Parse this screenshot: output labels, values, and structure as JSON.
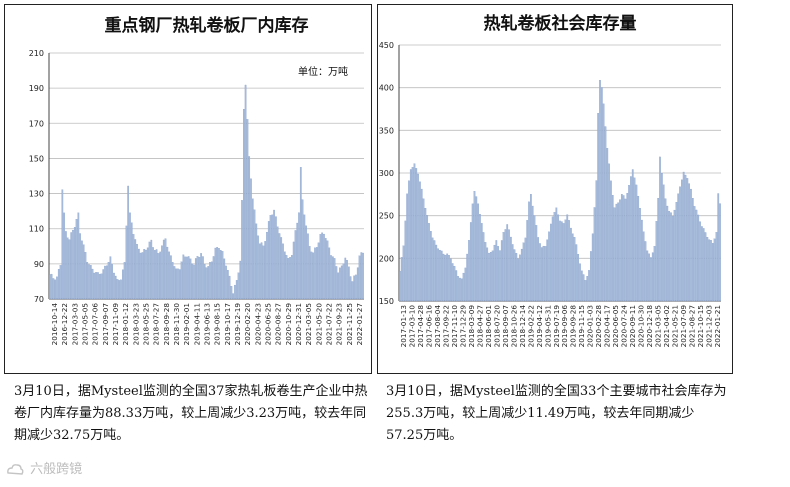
{
  "colors": {
    "bar": "#a7bbdb",
    "bar_stroke": "#7f99c6",
    "grid": "#bdbdbd",
    "axis": "#444444"
  },
  "chart_data": [
    {
      "type": "bar",
      "title": "重点钢厂热轧卷板厂内库存",
      "unit_label": "单位：万吨",
      "ylim": [
        70,
        210
      ],
      "yticks": [
        70,
        90,
        110,
        130,
        150,
        170,
        190,
        210
      ],
      "xtick_labels": [
        "2016-10-14",
        "2016-12-22",
        "2017-03-03",
        "2017-05-05",
        "2017-07-06",
        "2017-09-07",
        "2017-11-09",
        "2018-01-12",
        "2018-03-23",
        "2018-05-25",
        "2018-07-27",
        "2018-09-28",
        "2018-11-30",
        "2019-02-01",
        "2019-04-11",
        "2019-06-13",
        "2019-08-15",
        "2019-10-17",
        "2019-12-19",
        "2020-02-20",
        "2020-04-23",
        "2020-06-25",
        "2020-08-27",
        "2020-10-29",
        "2020-12-31",
        "2021-03-05",
        "2021-05-20",
        "2021-07-22",
        "2021-09-23",
        "2021-11-25",
        "2022-01-27"
      ],
      "keypoints": [
        [
          0,
          84
        ],
        [
          2,
          82
        ],
        [
          4,
          82
        ],
        [
          6,
          90
        ],
        [
          7,
          133
        ],
        [
          8,
          118
        ],
        [
          9,
          108
        ],
        [
          11,
          104
        ],
        [
          14,
          112
        ],
        [
          16,
          118
        ],
        [
          17,
          108
        ],
        [
          19,
          100
        ],
        [
          21,
          92
        ],
        [
          23,
          88
        ],
        [
          25,
          86
        ],
        [
          27,
          84
        ],
        [
          30,
          86
        ],
        [
          32,
          90
        ],
        [
          34,
          93
        ],
        [
          36,
          86
        ],
        [
          38,
          80
        ],
        [
          40,
          82
        ],
        [
          42,
          90
        ],
        [
          44,
          135
        ],
        [
          45,
          118
        ],
        [
          47,
          108
        ],
        [
          49,
          100
        ],
        [
          52,
          96
        ],
        [
          55,
          100
        ],
        [
          57,
          103
        ],
        [
          59,
          98
        ],
        [
          61,
          96
        ],
        [
          63,
          100
        ],
        [
          65,
          105
        ],
        [
          67,
          96
        ],
        [
          69,
          92
        ],
        [
          71,
          86
        ],
        [
          73,
          88
        ],
        [
          75,
          94
        ],
        [
          77,
          95
        ],
        [
          79,
          92
        ],
        [
          81,
          90
        ],
        [
          83,
          94
        ],
        [
          85,
          96
        ],
        [
          87,
          90
        ],
        [
          89,
          88
        ],
        [
          91,
          92
        ],
        [
          93,
          98
        ],
        [
          95,
          100
        ],
        [
          97,
          96
        ],
        [
          99,
          90
        ],
        [
          101,
          82
        ],
        [
          103,
          74
        ],
        [
          105,
          80
        ],
        [
          107,
          92
        ],
        [
          108,
          125
        ],
        [
          109,
          178
        ],
        [
          110,
          193
        ],
        [
          111,
          172
        ],
        [
          112,
          150
        ],
        [
          114,
          128
        ],
        [
          116,
          112
        ],
        [
          118,
          102
        ],
        [
          120,
          100
        ],
        [
          122,
          108
        ],
        [
          124,
          118
        ],
        [
          126,
          120
        ],
        [
          128,
          112
        ],
        [
          130,
          104
        ],
        [
          132,
          98
        ],
        [
          134,
          92
        ],
        [
          136,
          96
        ],
        [
          138,
          108
        ],
        [
          140,
          120
        ],
        [
          141,
          144
        ],
        [
          142,
          126
        ],
        [
          144,
          112
        ],
        [
          146,
          100
        ],
        [
          148,
          96
        ],
        [
          150,
          100
        ],
        [
          152,
          106
        ],
        [
          154,
          108
        ],
        [
          156,
          102
        ],
        [
          158,
          96
        ],
        [
          160,
          92
        ],
        [
          162,
          86
        ],
        [
          164,
          88
        ],
        [
          166,
          94
        ],
        [
          168,
          88
        ],
        [
          170,
          80
        ],
        [
          172,
          84
        ],
        [
          174,
          94
        ],
        [
          176,
          97
        ]
      ],
      "bar_count": 177,
      "caption": "3月10日，据Mysteel监测的全国37家热轧板卷生产企业中热卷厂内库存量为88.33万吨，较上周减少3.23万吨，较去年同期减少32.75万吨。"
    },
    {
      "type": "bar",
      "title": "热轧卷板社会库存量",
      "ylim": [
        150,
        450
      ],
      "yticks": [
        150,
        200,
        250,
        300,
        350,
        400,
        450
      ],
      "xtick_labels": [
        "2017-01-13",
        "2017-03-10",
        "2017-04-28",
        "2017-06-16",
        "2017-08-04",
        "2017-09-22",
        "2017-11-10",
        "2017-12-29",
        "2018-03-09",
        "2018-04-27",
        "2018-06-01",
        "2018-07-20",
        "2018-09-07",
        "2018-10-26",
        "2018-12-14",
        "2019-02-22",
        "2019-04-12",
        "2019-05-31",
        "2019-07-19",
        "2019-09-06",
        "2019-09-28",
        "2019-11-15",
        "2020-01-03",
        "2020-02-28",
        "2020-04-17",
        "2020-06-05",
        "2020-07-24",
        "2020-09-11",
        "2020-10-30",
        "2020-12-18",
        "2021-03-05",
        "2021-04-02",
        "2021-05-21",
        "2021-07-09",
        "2021-08-27",
        "2021-10-15",
        "2021-12-03",
        "2022-01-21"
      ],
      "keypoints": [
        [
          0,
          185
        ],
        [
          2,
          215
        ],
        [
          4,
          275
        ],
        [
          6,
          305
        ],
        [
          8,
          310
        ],
        [
          10,
          300
        ],
        [
          12,
          280
        ],
        [
          14,
          260
        ],
        [
          16,
          240
        ],
        [
          18,
          225
        ],
        [
          20,
          215
        ],
        [
          22,
          210
        ],
        [
          24,
          205
        ],
        [
          26,
          205
        ],
        [
          28,
          200
        ],
        [
          30,
          190
        ],
        [
          32,
          180
        ],
        [
          34,
          175
        ],
        [
          36,
          190
        ],
        [
          38,
          220
        ],
        [
          40,
          265
        ],
        [
          41,
          278
        ],
        [
          43,
          265
        ],
        [
          45,
          240
        ],
        [
          47,
          220
        ],
        [
          49,
          205
        ],
        [
          51,
          210
        ],
        [
          53,
          220
        ],
        [
          55,
          210
        ],
        [
          57,
          230
        ],
        [
          59,
          240
        ],
        [
          61,
          225
        ],
        [
          63,
          210
        ],
        [
          65,
          200
        ],
        [
          67,
          210
        ],
        [
          69,
          225
        ],
        [
          71,
          265
        ],
        [
          72,
          275
        ],
        [
          74,
          250
        ],
        [
          76,
          225
        ],
        [
          78,
          212
        ],
        [
          80,
          215
        ],
        [
          82,
          230
        ],
        [
          84,
          250
        ],
        [
          86,
          258
        ],
        [
          88,
          245
        ],
        [
          90,
          240
        ],
        [
          92,
          252
        ],
        [
          94,
          235
        ],
        [
          96,
          225
        ],
        [
          98,
          205
        ],
        [
          100,
          185
        ],
        [
          102,
          175
        ],
        [
          104,
          185
        ],
        [
          106,
          230
        ],
        [
          108,
          290
        ],
        [
          109,
          370
        ],
        [
          110,
          410
        ],
        [
          111,
          400
        ],
        [
          112,
          380
        ],
        [
          114,
          330
        ],
        [
          116,
          290
        ],
        [
          118,
          260
        ],
        [
          120,
          265
        ],
        [
          122,
          275
        ],
        [
          124,
          270
        ],
        [
          126,
          285
        ],
        [
          128,
          305
        ],
        [
          130,
          285
        ],
        [
          132,
          260
        ],
        [
          134,
          230
        ],
        [
          136,
          210
        ],
        [
          138,
          200
        ],
        [
          140,
          215
        ],
        [
          142,
          270
        ],
        [
          143,
          320
        ],
        [
          144,
          300
        ],
        [
          146,
          270
        ],
        [
          148,
          255
        ],
        [
          150,
          250
        ],
        [
          152,
          265
        ],
        [
          154,
          285
        ],
        [
          156,
          300
        ],
        [
          158,
          295
        ],
        [
          160,
          280
        ],
        [
          162,
          262
        ],
        [
          164,
          250
        ],
        [
          166,
          238
        ],
        [
          168,
          230
        ],
        [
          170,
          222
        ],
        [
          172,
          218
        ],
        [
          174,
          230
        ],
        [
          175,
          275
        ],
        [
          176,
          265
        ]
      ],
      "bar_count": 177,
      "caption": "3月10日，据Mysteel监测的全国33个主要城市社会库存为255.3万吨，较上周减少11.49万吨，较去年同期减少57.25万吨。"
    }
  ],
  "watermark": {
    "text": "六般跨镜",
    "logo_icon": "cloud-logo-icon"
  }
}
